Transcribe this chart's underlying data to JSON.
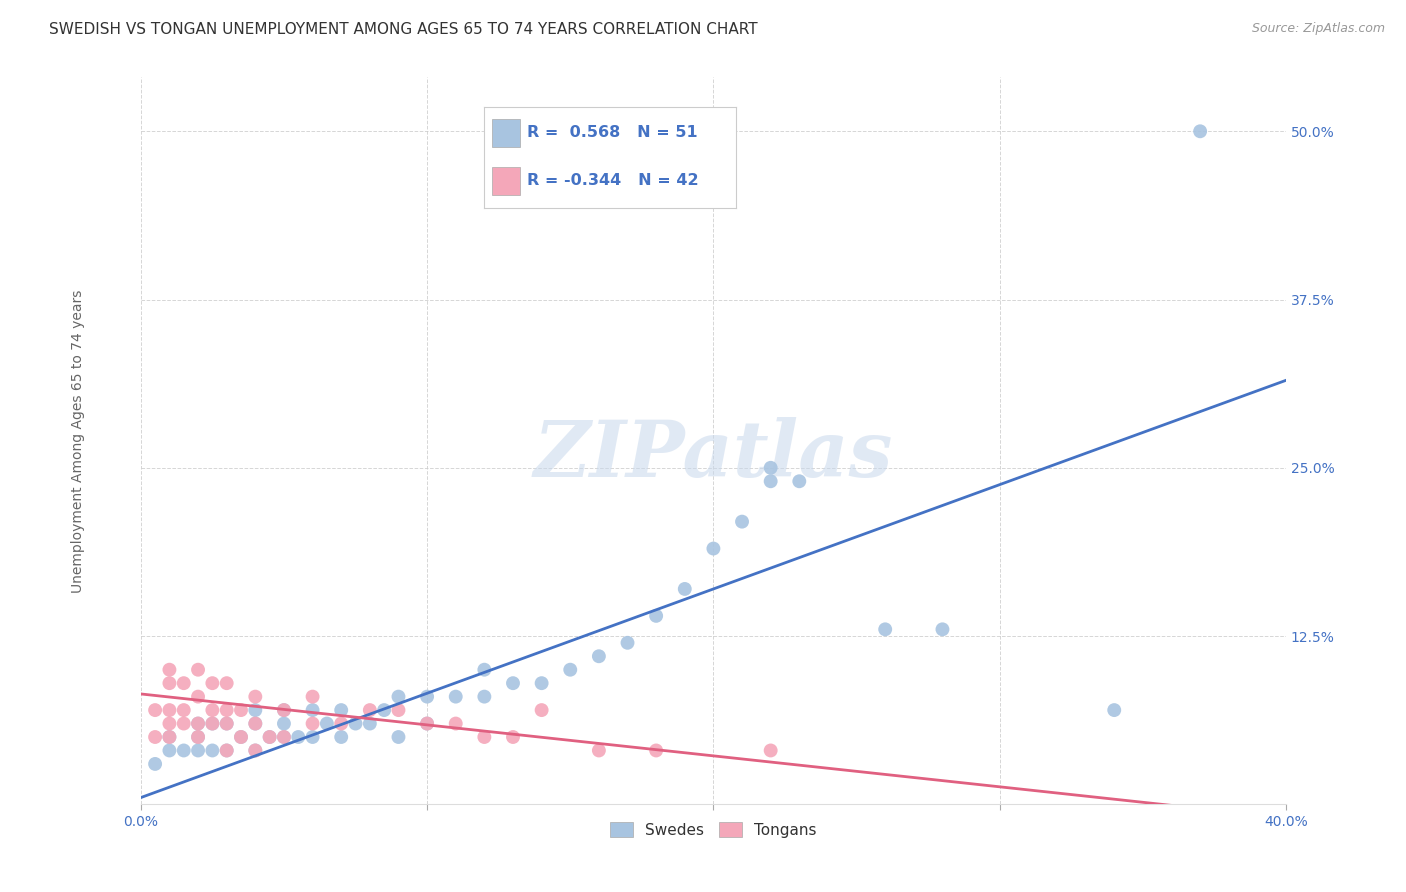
{
  "title": "SWEDISH VS TONGAN UNEMPLOYMENT AMONG AGES 65 TO 74 YEARS CORRELATION CHART",
  "source": "Source: ZipAtlas.com",
  "ylabel": "Unemployment Among Ages 65 to 74 years",
  "xlim": [
    0.0,
    0.4
  ],
  "ylim": [
    0.0,
    0.54
  ],
  "xticks": [
    0.0,
    0.1,
    0.2,
    0.3,
    0.4
  ],
  "yticks": [
    0.0,
    0.125,
    0.25,
    0.375,
    0.5
  ],
  "xticklabels": [
    "0.0%",
    "",
    "",
    "",
    "40.0%"
  ],
  "yticklabels": [
    "",
    "12.5%",
    "25.0%",
    "37.5%",
    "50.0%"
  ],
  "blue_R": 0.568,
  "blue_N": 51,
  "pink_R": -0.344,
  "pink_N": 42,
  "blue_color": "#a8c4e0",
  "pink_color": "#f4a7b9",
  "blue_line_color": "#4472c4",
  "pink_line_color": "#e06080",
  "legend_blue_label": "Swedes",
  "legend_pink_label": "Tongans",
  "blue_x": [
    0.005,
    0.01,
    0.01,
    0.015,
    0.02,
    0.02,
    0.02,
    0.025,
    0.025,
    0.03,
    0.03,
    0.035,
    0.04,
    0.04,
    0.04,
    0.045,
    0.05,
    0.05,
    0.05,
    0.055,
    0.06,
    0.06,
    0.065,
    0.07,
    0.07,
    0.075,
    0.08,
    0.085,
    0.09,
    0.09,
    0.1,
    0.1,
    0.11,
    0.12,
    0.12,
    0.13,
    0.14,
    0.15,
    0.16,
    0.17,
    0.18,
    0.19,
    0.2,
    0.21,
    0.22,
    0.22,
    0.23,
    0.26,
    0.28,
    0.34,
    0.37
  ],
  "blue_y": [
    0.03,
    0.04,
    0.05,
    0.04,
    0.04,
    0.05,
    0.06,
    0.04,
    0.06,
    0.04,
    0.06,
    0.05,
    0.04,
    0.06,
    0.07,
    0.05,
    0.05,
    0.06,
    0.07,
    0.05,
    0.05,
    0.07,
    0.06,
    0.05,
    0.07,
    0.06,
    0.06,
    0.07,
    0.05,
    0.08,
    0.06,
    0.08,
    0.08,
    0.08,
    0.1,
    0.09,
    0.09,
    0.1,
    0.11,
    0.12,
    0.14,
    0.16,
    0.19,
    0.21,
    0.24,
    0.25,
    0.24,
    0.13,
    0.13,
    0.07,
    0.5
  ],
  "pink_x": [
    0.005,
    0.005,
    0.01,
    0.01,
    0.01,
    0.01,
    0.01,
    0.015,
    0.015,
    0.015,
    0.02,
    0.02,
    0.02,
    0.02,
    0.025,
    0.025,
    0.025,
    0.03,
    0.03,
    0.03,
    0.03,
    0.035,
    0.035,
    0.04,
    0.04,
    0.04,
    0.045,
    0.05,
    0.05,
    0.06,
    0.06,
    0.07,
    0.08,
    0.09,
    0.1,
    0.11,
    0.12,
    0.13,
    0.14,
    0.16,
    0.18,
    0.22
  ],
  "pink_y": [
    0.05,
    0.07,
    0.05,
    0.06,
    0.07,
    0.09,
    0.1,
    0.06,
    0.07,
    0.09,
    0.05,
    0.06,
    0.08,
    0.1,
    0.06,
    0.07,
    0.09,
    0.04,
    0.06,
    0.07,
    0.09,
    0.05,
    0.07,
    0.04,
    0.06,
    0.08,
    0.05,
    0.05,
    0.07,
    0.06,
    0.08,
    0.06,
    0.07,
    0.07,
    0.06,
    0.06,
    0.05,
    0.05,
    0.07,
    0.04,
    0.04,
    0.04
  ],
  "blue_line_x0": 0.0,
  "blue_line_y0": 0.005,
  "blue_line_x1": 0.4,
  "blue_line_y1": 0.315,
  "pink_line_x0": 0.0,
  "pink_line_y0": 0.082,
  "pink_line_x1": 0.4,
  "pink_line_y1": -0.01,
  "watermark_text": "ZIPatlas",
  "background_color": "#ffffff",
  "grid_color": "#cccccc",
  "title_fontsize": 11,
  "axis_label_fontsize": 10,
  "tick_fontsize": 10,
  "marker_size": 100
}
